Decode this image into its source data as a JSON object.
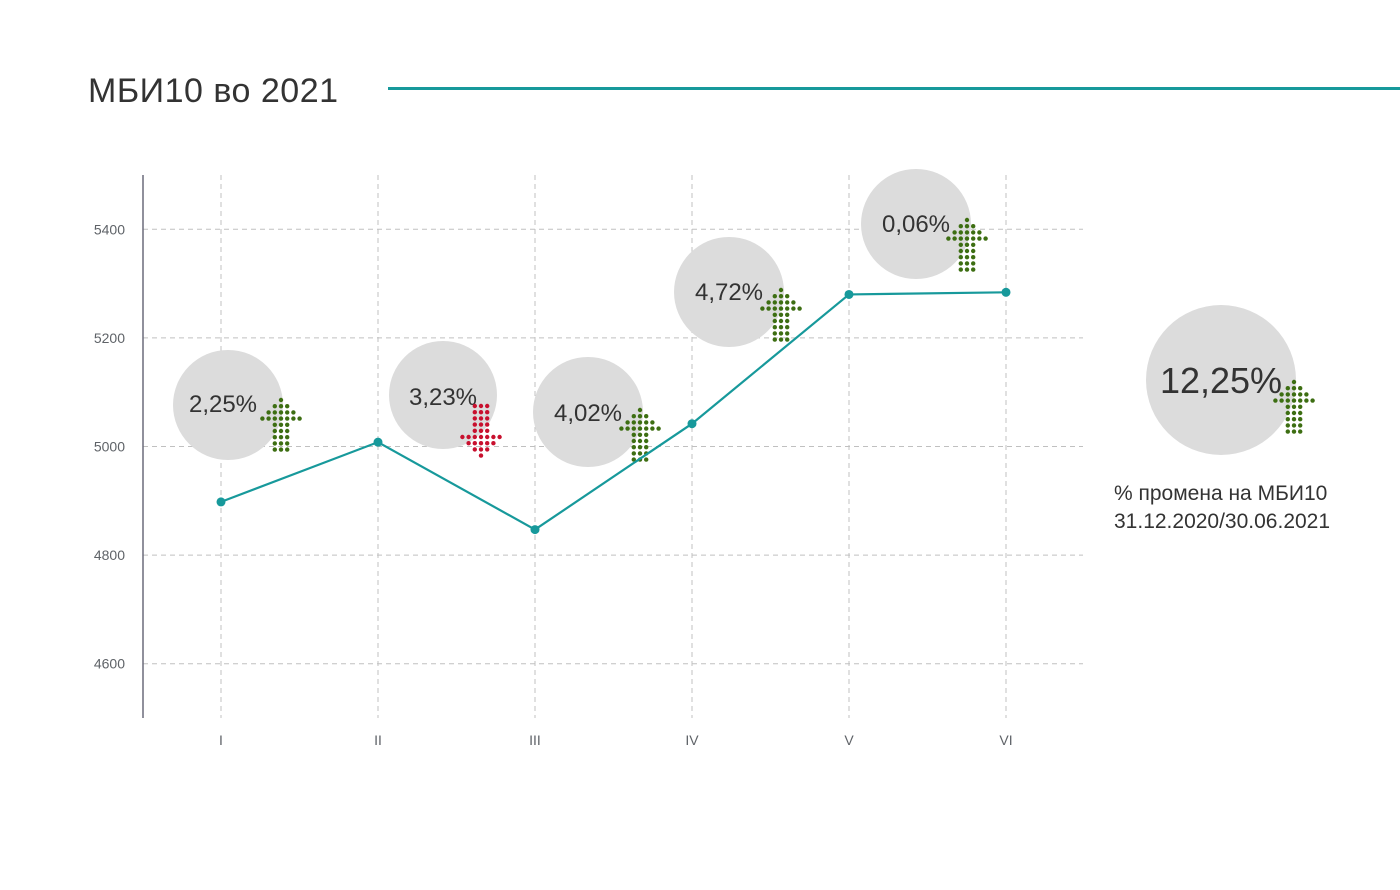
{
  "title": "МБИ10 во 2021",
  "colors": {
    "accent": "#17999b",
    "up": "#3d6e12",
    "down": "#c8102e",
    "bubble": "#dcdcdc",
    "grid": "#c0c0c0",
    "axis": "#6b6b7b"
  },
  "chart_data": {
    "type": "line",
    "title": "МБИ10 во 2021",
    "categories": [
      "I",
      "II",
      "III",
      "IV",
      "V",
      "VI"
    ],
    "series": [
      {
        "values": [
          4898,
          5008,
          4847,
          5042,
          5280,
          5284
        ]
      }
    ],
    "ylim": [
      4500,
      5500
    ],
    "yticks": [
      4600,
      4800,
      5000,
      5200,
      5400
    ],
    "grid": true,
    "monthly_change": [
      {
        "label": "2,25%",
        "direction": "up"
      },
      {
        "label": "3,23%",
        "direction": "down"
      },
      {
        "label": "4,02%",
        "direction": "up"
      },
      {
        "label": "4,72%",
        "direction": "up"
      },
      {
        "label": "0,06%",
        "direction": "up"
      }
    ]
  },
  "total_change": {
    "value": "12,25%",
    "direction": "up",
    "caption_line1": "% промена на МБИ10",
    "caption_line2": "31.12.2020/30.06.2021"
  }
}
